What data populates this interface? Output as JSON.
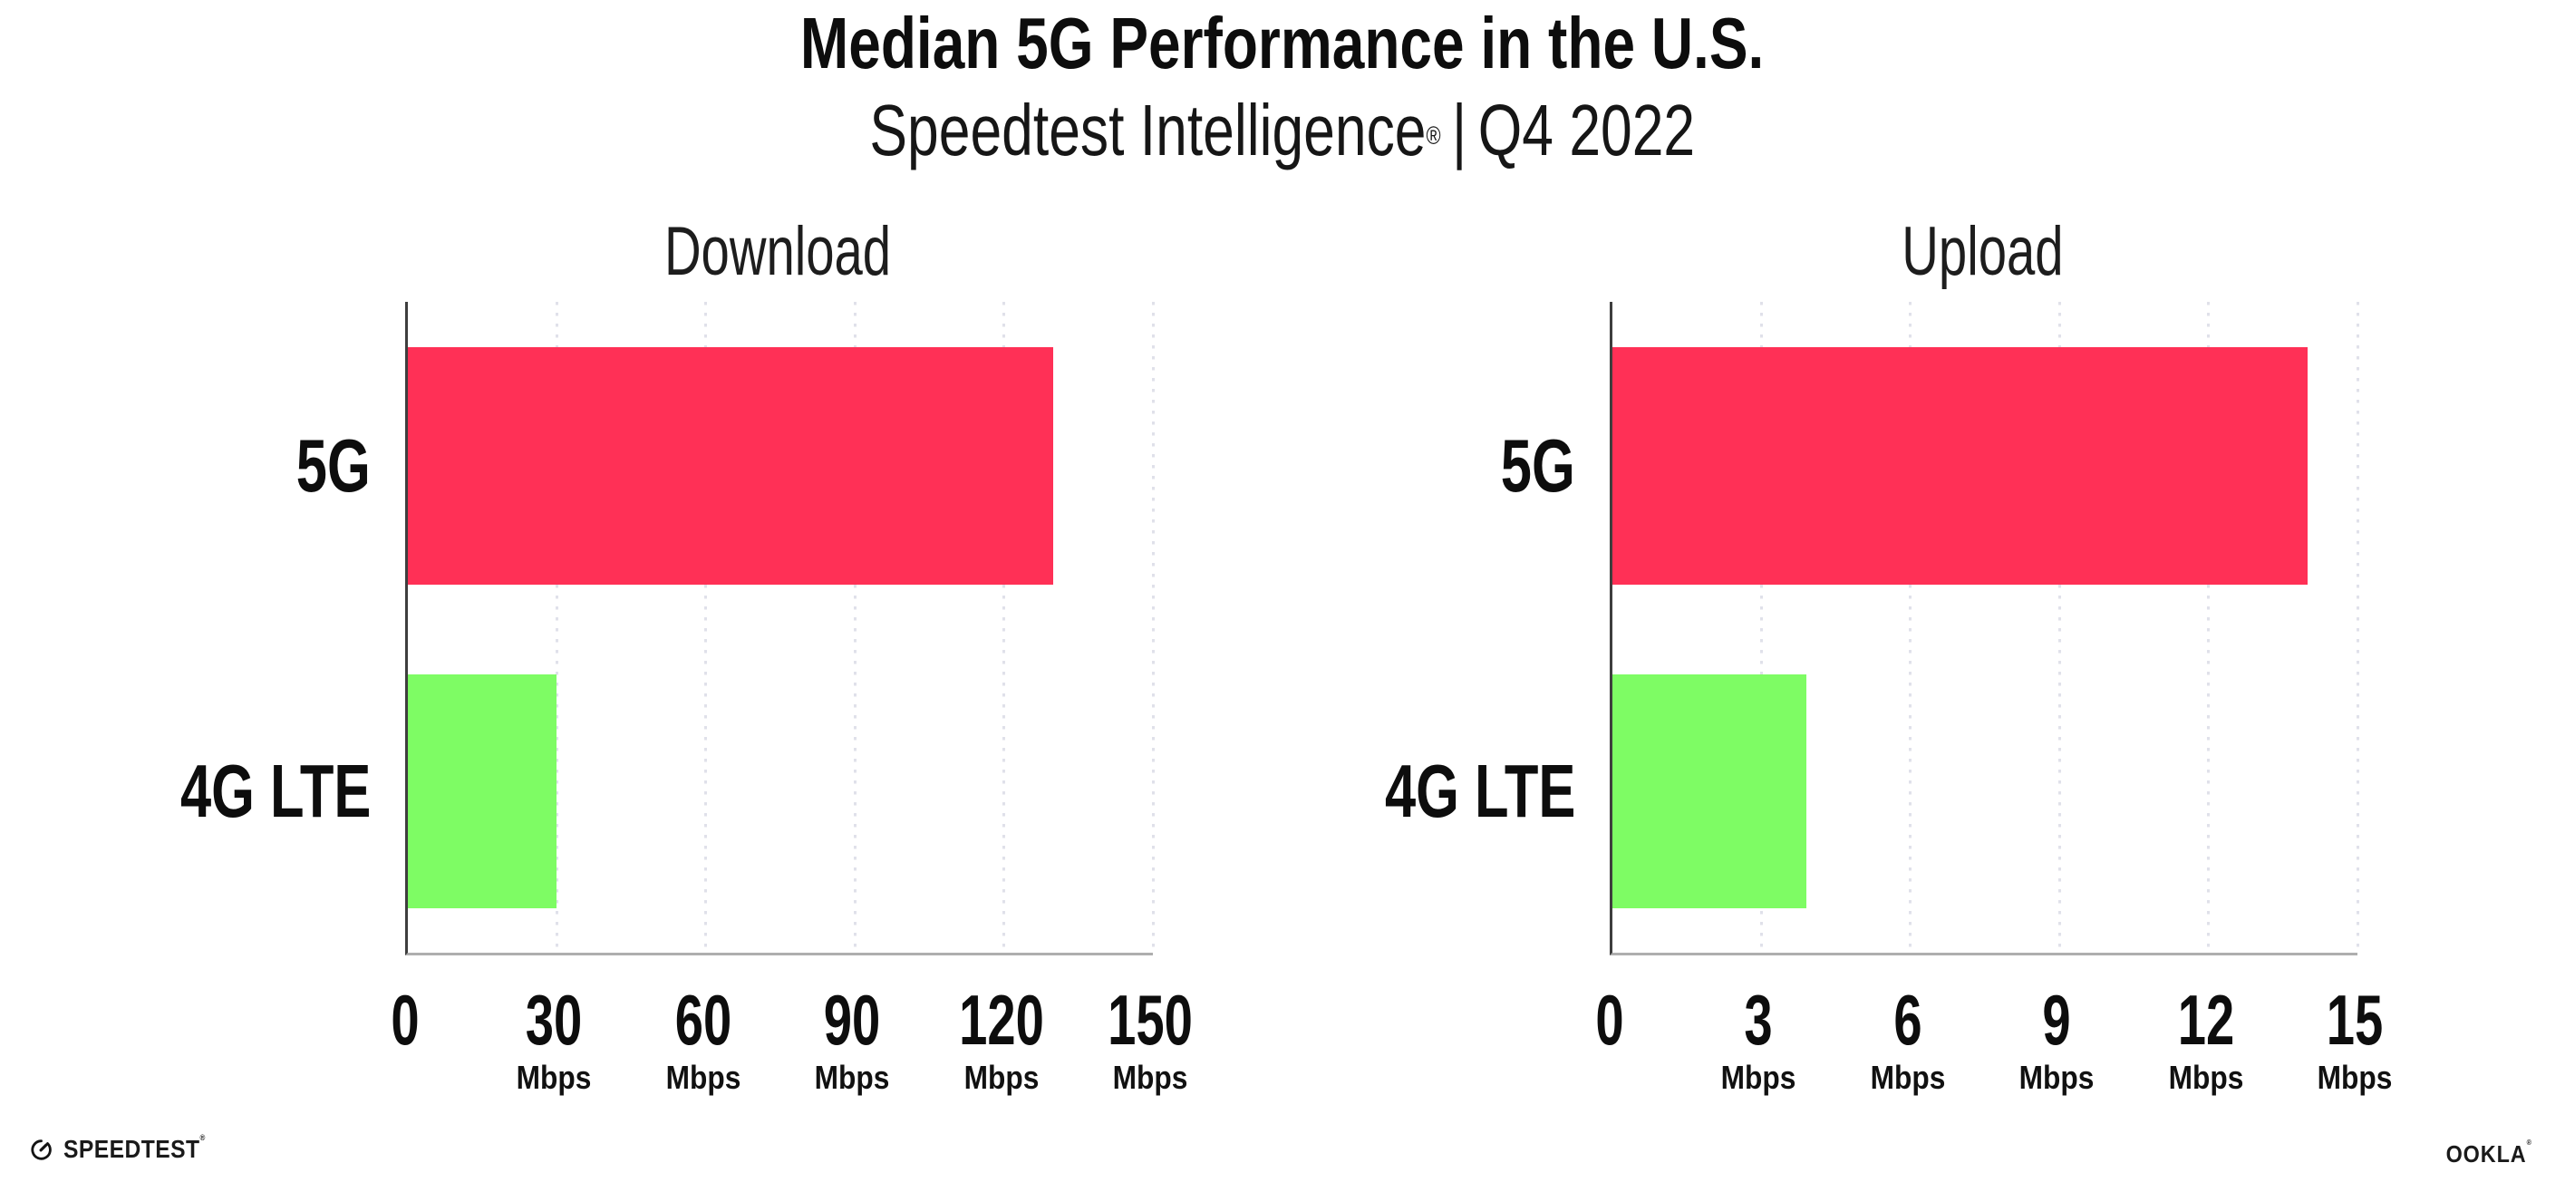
{
  "header": {
    "title": "Median 5G Performance in the U.S.",
    "subtitle_brand": "Speedtest Intelligence",
    "subtitle_registered": "®",
    "subtitle_separator": "|",
    "subtitle_period": "Q4 2022"
  },
  "colors": {
    "bar_5g": "#ff3056",
    "bar_4g_lte": "#7efc64",
    "axis_spine": "#3e3e3e",
    "axis_baseline": "#aeaeae",
    "gridline": "#e0e1ea",
    "text": "#0d0d0d"
  },
  "chart_data": [
    {
      "type": "bar",
      "orientation": "horizontal",
      "title": "Download",
      "categories": [
        "5G",
        "4G LTE"
      ],
      "values": [
        130,
        30
      ],
      "unit": "Mbps",
      "xlim": [
        0,
        150
      ],
      "xticks": [
        0,
        30,
        60,
        90,
        120,
        150
      ],
      "grid": "dotted-vertical",
      "legend": "none",
      "bar_colors": [
        "#ff3056",
        "#7efc64"
      ]
    },
    {
      "type": "bar",
      "orientation": "horizontal",
      "title": "Upload",
      "categories": [
        "5G",
        "4G LTE"
      ],
      "values": [
        14,
        3.9
      ],
      "unit": "Mbps",
      "xlim": [
        0,
        15
      ],
      "xticks": [
        0,
        3,
        6,
        9,
        12,
        15
      ],
      "grid": "dotted-vertical",
      "legend": "none",
      "bar_colors": [
        "#ff3056",
        "#7efc64"
      ]
    }
  ],
  "footer": {
    "speedtest_wordmark": "SPEEDTEST",
    "speedtest_trademark": "®",
    "ookla_wordmark": "OOKLA",
    "ookla_trademark": "®"
  }
}
